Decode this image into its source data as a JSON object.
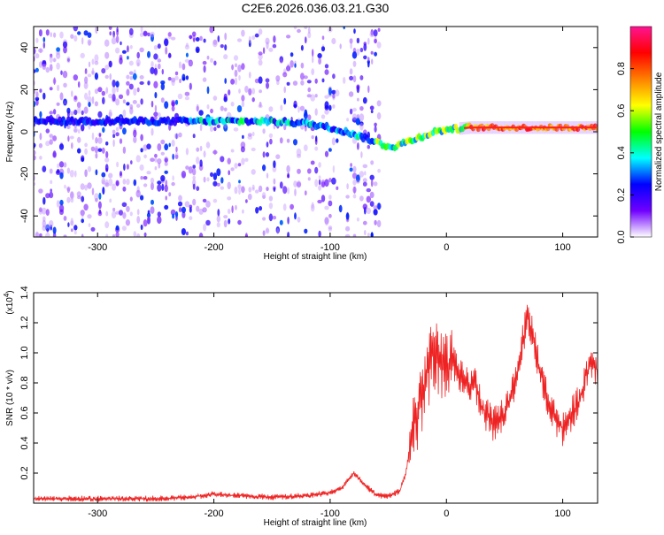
{
  "page": {
    "title": "C2E6.2026.036.03.21.G30"
  },
  "chart_data": [
    {
      "type": "heatmap",
      "title": "C2E6.2026.036.03.21.G30",
      "xlabel": "Height of straight line (km)",
      "ylabel": "Frequency (Hz)",
      "xlim": [
        -355,
        130
      ],
      "ylim": [
        -50,
        50
      ],
      "xticks": [
        -300,
        -200,
        -100,
        0,
        100
      ],
      "yticks": [
        -40,
        -20,
        0,
        20,
        40
      ],
      "xtick_labels": [
        "-300",
        "-200",
        "-100",
        "0",
        "100"
      ],
      "ytick_labels": [
        "-40",
        "-20",
        "0",
        "20",
        "40"
      ],
      "colorbar": {
        "label": "Normalized spectral amplitude",
        "range": [
          0,
          1
        ],
        "ticks": [
          0.0,
          0.2,
          0.4,
          0.6,
          0.8
        ],
        "tick_labels": [
          "0.0",
          "0.2",
          "0.4",
          "0.6",
          "0.8"
        ],
        "colormap": [
          "#ffffff",
          "#7000ff",
          "#0000ff",
          "#00ffff",
          "#00ff00",
          "#ffff00",
          "#ff8000",
          "#ff0000",
          "#ff1493"
        ]
      },
      "ridge": {
        "x": [
          -355,
          -300,
          -250,
          -200,
          -150,
          -120,
          -100,
          -80,
          -60,
          -50,
          -45,
          -40,
          -30,
          -20,
          -10,
          0,
          20,
          50,
          80,
          100,
          130
        ],
        "y": [
          5,
          5,
          5,
          5,
          5,
          4,
          2,
          -1,
          -5,
          -7,
          -7,
          -6,
          -4,
          -2,
          0,
          1,
          2,
          2,
          2,
          2,
          2
        ]
      }
    },
    {
      "type": "line",
      "xlabel": "Height of straight line (km)",
      "ylabel": "SNR (10 * v/v)",
      "y_multiplier": "(x10",
      "y_multiplier_exp": "4",
      "y_multiplier_close": ")",
      "xlim": [
        -355,
        130
      ],
      "ylim": [
        0,
        1.4
      ],
      "xticks": [
        -300,
        -200,
        -100,
        0,
        100
      ],
      "yticks": [
        0.2,
        0.4,
        0.6,
        0.8,
        1.0,
        1.2,
        1.4
      ],
      "xtick_labels": [
        "-300",
        "-200",
        "-100",
        "0",
        "100"
      ],
      "ytick_labels": [
        "0.2",
        "0.4",
        "0.6",
        "0.8",
        "1.0",
        "1.2",
        "1.4"
      ],
      "series": [
        {
          "color": "#ee2222",
          "x": [
            -355,
            -300,
            -250,
            -220,
            -200,
            -180,
            -150,
            -120,
            -100,
            -90,
            -80,
            -70,
            -60,
            -50,
            -40,
            -35,
            -30,
            -25,
            -20,
            -15,
            -12,
            -10,
            -5,
            0,
            5,
            10,
            15,
            20,
            25,
            30,
            35,
            40,
            45,
            50,
            55,
            60,
            65,
            70,
            75,
            80,
            85,
            90,
            95,
            100,
            105,
            110,
            115,
            120,
            125,
            130
          ],
          "y": [
            0.03,
            0.03,
            0.03,
            0.04,
            0.06,
            0.05,
            0.04,
            0.05,
            0.07,
            0.1,
            0.2,
            0.12,
            0.05,
            0.05,
            0.08,
            0.2,
            0.45,
            0.6,
            0.75,
            0.9,
            1.05,
            0.95,
            0.9,
            0.92,
            0.95,
            0.85,
            0.82,
            0.78,
            0.8,
            0.65,
            0.58,
            0.52,
            0.55,
            0.6,
            0.7,
            0.85,
            1.05,
            1.25,
            1.1,
            0.9,
            0.75,
            0.62,
            0.55,
            0.5,
            0.55,
            0.62,
            0.7,
            0.85,
            0.95,
            0.88
          ]
        }
      ]
    }
  ]
}
